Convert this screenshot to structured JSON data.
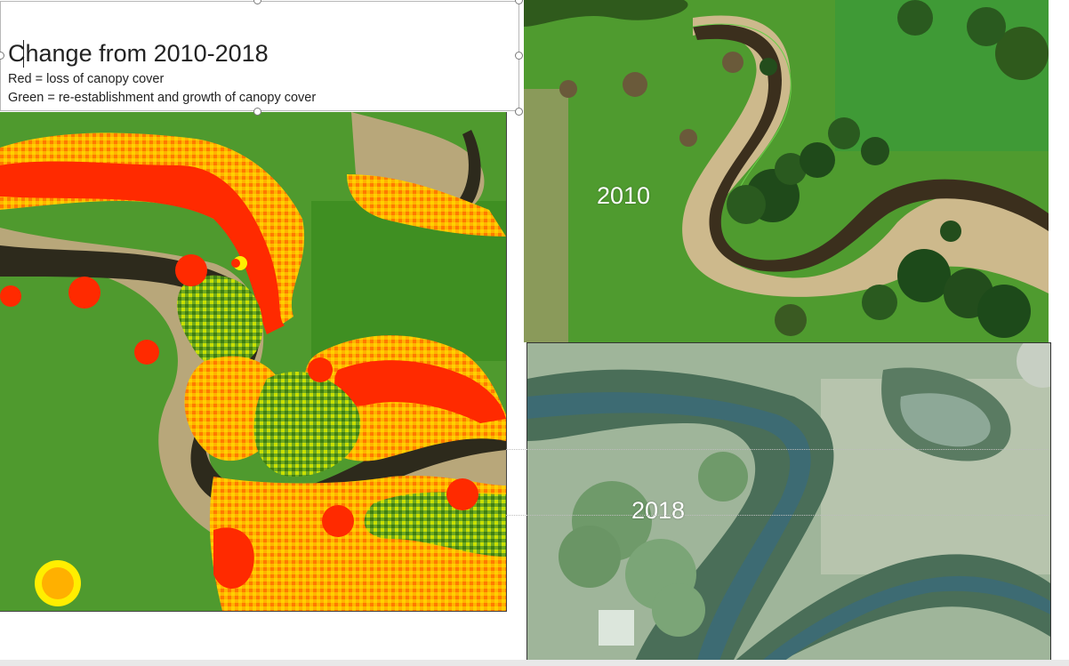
{
  "textbox": {
    "title": "Change from 2010-2018",
    "legend_red": "Red = loss of canopy cover",
    "legend_green": "Green = re-establishment and growth of canopy cover"
  },
  "images": {
    "change_map": {
      "description_name": "canopy-change-map"
    },
    "photo_2010": {
      "label": "2010"
    },
    "photo_2018": {
      "label": "2018"
    }
  },
  "colors": {
    "loss": "#ff2a00",
    "orange": "#ff9a00",
    "yellow": "#ffee00",
    "growth": "#3f8f1a",
    "grass": "#4f9a2e",
    "water_2010": "#3a2f1c",
    "water_2018": "#3f6f73"
  }
}
